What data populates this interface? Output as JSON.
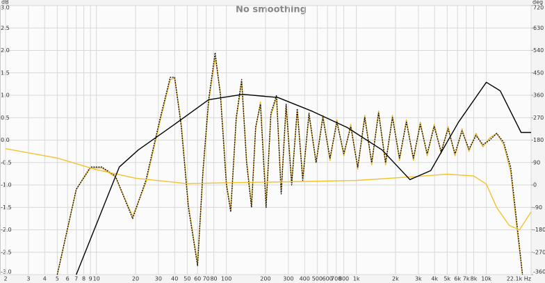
{
  "chart_data": {
    "type": "line",
    "title": "No smoothing",
    "y_label": "dB",
    "y2_label": "deg",
    "x_scale": "log",
    "grid": true,
    "xlim": [
      2,
      22100
    ],
    "ylim": [
      -3,
      3
    ],
    "y2lim": [
      -360,
      720
    ],
    "xticks": [
      2,
      3,
      4,
      5,
      6,
      7,
      8,
      9,
      10,
      20,
      30,
      40,
      50,
      60,
      70,
      80,
      100,
      200,
      300,
      400,
      500,
      600,
      700,
      800,
      {
        "value": 1000,
        "label": "1k"
      },
      {
        "value": 2000,
        "label": "2k"
      },
      {
        "value": 3000,
        "label": "3k"
      },
      {
        "value": 4000,
        "label": "4k"
      },
      {
        "value": 5000,
        "label": "5k"
      },
      {
        "value": 6000,
        "label": "6k"
      },
      {
        "value": 7000,
        "label": "7k"
      },
      {
        "value": 8000,
        "label": "8k"
      },
      {
        "value": 10000,
        "label": "10k"
      },
      {
        "value": 22100,
        "label": "22.1k Hz"
      }
    ],
    "yticks": [
      {
        "value": 3,
        "label": "3.0"
      },
      {
        "value": 2.5,
        "label": "2.5"
      },
      {
        "value": 2,
        "label": "2.0"
      },
      {
        "value": 1.5,
        "label": "1.5"
      },
      {
        "value": 1,
        "label": "1.0"
      },
      {
        "value": 0.5,
        "label": "0.5"
      },
      {
        "value": 0,
        "label": "0.0"
      },
      {
        "value": -0.5,
        "label": "-0.5"
      },
      {
        "value": -1,
        "label": "-1.0"
      },
      {
        "value": -1.5,
        "label": "-1.5"
      },
      {
        "value": -2,
        "label": "-2.0"
      },
      {
        "value": -2.5,
        "label": "-2.5"
      },
      {
        "value": -3,
        "label": "-3.0"
      }
    ],
    "y2ticks": [
      720,
      630,
      540,
      450,
      360,
      270,
      180,
      90,
      0,
      -90,
      -180,
      -270,
      -360
    ],
    "series": [
      {
        "color": "#e6b422",
        "dash": false,
        "x": [
          5,
          7,
          9,
          11,
          14,
          19,
          24,
          31,
          37,
          40,
          45,
          51,
          60,
          66,
          73,
          82,
          90,
          100,
          108,
          119,
          131,
          143,
          156,
          168,
          183,
          202,
          220,
          243,
          264,
          288,
          318,
          351,
          387,
          432,
          490,
          553,
          627,
          708,
          801,
          906,
          1025,
          1160,
          1312,
          1483,
          1679,
          1897,
          2148,
          2427,
          2748,
          3105,
          3508,
          3972,
          4488,
          5082,
          5741,
          6501,
          7345,
          8318,
          9397,
          10640,
          12020,
          13610,
          15380,
          17410,
          18970
        ],
        "values": [
          -3.0,
          -1.1,
          -0.62,
          -0.62,
          -0.82,
          -1.7,
          -0.95,
          0.45,
          1.35,
          1.38,
          0.35,
          -1.45,
          -2.75,
          -0.75,
          0.85,
          1.85,
          1.05,
          -0.95,
          -1.55,
          0.45,
          1.3,
          -0.45,
          -1.45,
          0.25,
          0.85,
          -1.4,
          0.55,
          0.95,
          -1.15,
          0.75,
          -0.95,
          0.65,
          -0.85,
          0.55,
          -0.5,
          0.55,
          -0.45,
          0.45,
          -0.35,
          0.35,
          -0.65,
          0.55,
          -0.55,
          0.65,
          -0.55,
          0.55,
          -0.45,
          0.45,
          -0.45,
          0.4,
          -0.35,
          0.35,
          -0.3,
          0.3,
          -0.35,
          0.25,
          -0.25,
          0.15,
          -0.15,
          0.05,
          0.15,
          -0.1,
          -0.7,
          -2.1,
          -3.0
        ]
      },
      {
        "color": "#111111",
        "dash": true,
        "x": [
          5,
          7,
          9,
          11,
          14,
          19,
          24,
          31,
          37,
          40,
          45,
          51,
          60,
          66,
          73,
          82,
          90,
          100,
          108,
          119,
          131,
          143,
          156,
          168,
          183,
          202,
          220,
          243,
          264,
          288,
          318,
          351,
          387,
          432,
          490,
          553,
          627,
          708,
          801,
          906,
          1025,
          1160,
          1312,
          1483,
          1679,
          1897,
          2148,
          2427,
          2748,
          3105,
          3508,
          3972,
          4488,
          5082,
          5741,
          6501,
          7345,
          8318,
          9397,
          10640,
          12020,
          13610,
          15380,
          17410,
          18970
        ],
        "values": [
          -3.0,
          -1.1,
          -0.6,
          -0.6,
          -0.8,
          -1.75,
          -0.9,
          0.5,
          1.4,
          1.4,
          0.3,
          -1.5,
          -2.8,
          -0.7,
          0.9,
          1.95,
          1.0,
          -1.0,
          -1.6,
          0.5,
          1.35,
          -0.5,
          -1.5,
          0.3,
          0.8,
          -1.5,
          0.6,
          1.0,
          -1.2,
          0.8,
          -1.0,
          0.7,
          -0.9,
          0.6,
          -0.5,
          0.5,
          -0.4,
          0.4,
          -0.3,
          0.3,
          -0.6,
          0.5,
          -0.5,
          0.6,
          -0.5,
          0.5,
          -0.4,
          0.4,
          -0.4,
          0.35,
          -0.3,
          0.3,
          -0.25,
          0.25,
          -0.3,
          0.2,
          -0.2,
          0.1,
          -0.1,
          0.0,
          0.15,
          -0.05,
          -0.6,
          -2.0,
          -3.0
        ]
      },
      {
        "color": "#f2c230",
        "dash": false,
        "x": [
          2,
          5,
          10,
          20,
          50,
          100,
          300,
          1000,
          3000,
          5000,
          8000,
          10000,
          12000,
          15000,
          18000,
          22100
        ],
        "values": [
          -0.19,
          -0.4,
          -0.66,
          -0.85,
          -0.97,
          -0.95,
          -0.93,
          -0.9,
          -0.81,
          -0.76,
          -0.8,
          -0.98,
          -1.5,
          -1.9,
          -2.0,
          -1.6
        ]
      },
      {
        "color": "#000000",
        "dash": false,
        "x": [
          7,
          15,
          21,
          39,
          73,
          134,
          249,
          460,
          851,
          1578,
          2582,
          3734,
          6107,
          10000,
          12790,
          18500,
          22100
        ],
        "values": [
          -3.0,
          -0.6,
          -0.22,
          0.33,
          0.9,
          1.02,
          0.95,
          0.64,
          0.28,
          -0.22,
          -0.88,
          -0.68,
          0.4,
          1.29,
          1.1,
          0.17,
          0.17
        ]
      }
    ]
  }
}
